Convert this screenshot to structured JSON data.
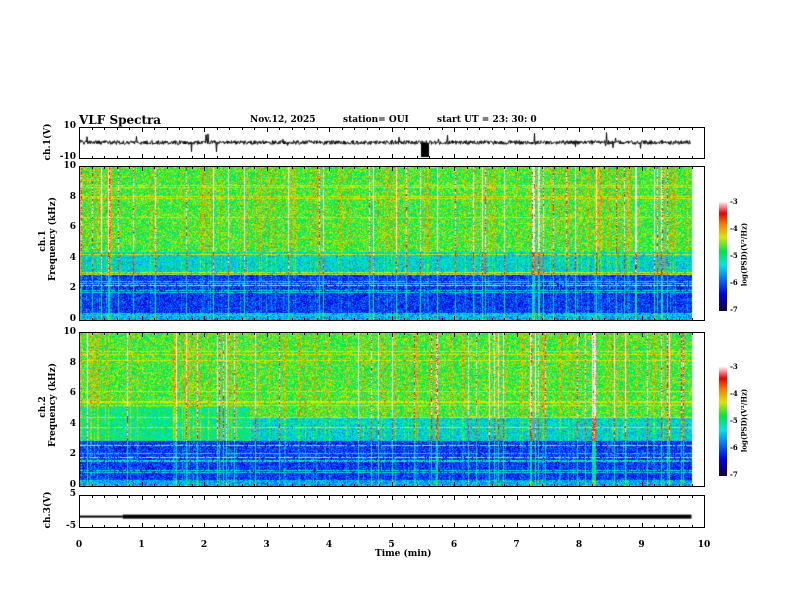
{
  "header": {
    "title": "VLF Spectra",
    "date": "Nov.12, 2025",
    "station": "station= OUI",
    "start": "start  UT =   23: 30: 0"
  },
  "chart_data": {
    "type": "heatmap",
    "xlabel": "Time (min)",
    "xlim": [
      0,
      10
    ],
    "xticks": [
      "0",
      "1",
      "2",
      "3",
      "4",
      "5",
      "6",
      "7",
      "8",
      "9",
      "10"
    ],
    "data_end_min": 9.8,
    "panels": [
      {
        "name": "ch1 waveform",
        "ylabel": "ch.1(V)",
        "ylim": [
          -10,
          10
        ],
        "yticks": [
          "10",
          "-10"
        ]
      },
      {
        "name": "ch1 spectrogram",
        "ylabel": "ch.1",
        "ylabel2": "Frequency (kHz)",
        "ylim": [
          0,
          10
        ],
        "yticks": [
          "10",
          "8",
          "6",
          "4",
          "2",
          "0"
        ],
        "colorbar": {
          "label": "log(PSD)(V²/Hz)",
          "range": [
            -7,
            -3
          ],
          "ticks": [
            "-3",
            "-4",
            "-5",
            "-6",
            "-7"
          ]
        }
      },
      {
        "name": "ch2 spectrogram",
        "ylabel": "ch.2",
        "ylabel2": "Frequency (kHz)",
        "ylim": [
          0,
          10
        ],
        "yticks": [
          "10",
          "8",
          "6",
          "4",
          "2",
          "0"
        ],
        "colorbar": {
          "label": "log(PSD)(V²/Hz)",
          "range": [
            -7,
            -3
          ],
          "ticks": [
            "-3",
            "-4",
            "-5",
            "-6",
            "-7"
          ]
        }
      },
      {
        "name": "ch3 waveform",
        "ylabel": "ch.3(V)",
        "ylim": [
          -5,
          5
        ],
        "yticks": [
          "5",
          "-5"
        ],
        "series": [
          {
            "x": [
              0,
              0.7
            ],
            "y": -1.9
          },
          {
            "x": [
              0.7,
              9.8
            ],
            "y": -1.6
          }
        ]
      }
    ]
  }
}
